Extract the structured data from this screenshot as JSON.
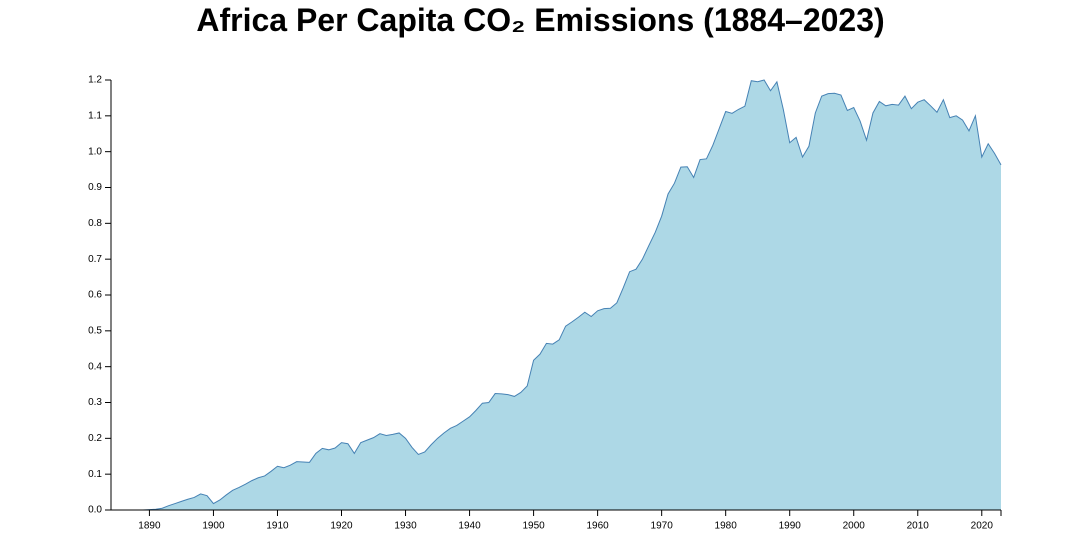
{
  "title": "Africa Per Capita CO₂ Emissions (1884–2023)",
  "colors": {
    "area_fill": "#add8e6",
    "area_stroke": "#4682b4",
    "axis": "#000000"
  },
  "chart_data": {
    "type": "area",
    "title": "Africa Per Capita CO₂ Emissions (1884–2023)",
    "xlabel": "",
    "ylabel": "",
    "xlim": [
      1884,
      2023
    ],
    "ylim": [
      0,
      1.2
    ],
    "grid": false,
    "x_ticks": [
      1890,
      1900,
      1910,
      1920,
      1930,
      1940,
      1950,
      1960,
      1970,
      1980,
      1990,
      2000,
      2010,
      2020
    ],
    "y_ticks": [
      "0.0",
      "0.1",
      "0.2",
      "0.3",
      "0.4",
      "0.5",
      "0.6",
      "0.7",
      "0.8",
      "0.9",
      "1.0",
      "1.1",
      "1.2"
    ],
    "series": [
      {
        "x": [
          1884,
          1885,
          1886,
          1887,
          1888,
          1889,
          1890,
          1891,
          1892,
          1893,
          1894,
          1895,
          1896,
          1897,
          1898,
          1899,
          1900,
          1901,
          1902,
          1903,
          1904,
          1905,
          1906,
          1907,
          1908,
          1909,
          1910,
          1911,
          1912,
          1913,
          1914,
          1915,
          1916,
          1917,
          1918,
          1919,
          1920,
          1921,
          1922,
          1923,
          1924,
          1925,
          1926,
          1927,
          1928,
          1929,
          1930,
          1931,
          1932,
          1933,
          1934,
          1935,
          1936,
          1937,
          1938,
          1939,
          1940,
          1941,
          1942,
          1943,
          1944,
          1945,
          1946,
          1947,
          1948,
          1949,
          1950,
          1951,
          1952,
          1953,
          1954,
          1955,
          1956,
          1957,
          1958,
          1959,
          1960,
          1961,
          1962,
          1963,
          1964,
          1965,
          1966,
          1967,
          1968,
          1969,
          1970,
          1971,
          1972,
          1973,
          1974,
          1975,
          1976,
          1977,
          1978,
          1979,
          1980,
          1981,
          1982,
          1983,
          1984,
          1985,
          1986,
          1987,
          1988,
          1989,
          1990,
          1991,
          1992,
          1993,
          1994,
          1995,
          1996,
          1997,
          1998,
          1999,
          2000,
          2001,
          2002,
          2003,
          2004,
          2005,
          2006,
          2007,
          2008,
          2009,
          2010,
          2011,
          2012,
          2013,
          2014,
          2015,
          2016,
          2017,
          2018,
          2019,
          2020,
          2021,
          2022,
          2023
        ],
        "values": [
          0.0,
          0.0,
          0.0,
          0.0,
          0.0,
          0.0,
          0.001,
          0.002,
          0.005,
          0.012,
          0.018,
          0.024,
          0.03,
          0.035,
          0.045,
          0.04,
          0.018,
          0.028,
          0.042,
          0.055,
          0.063,
          0.072,
          0.082,
          0.09,
          0.095,
          0.108,
          0.122,
          0.118,
          0.125,
          0.135,
          0.134,
          0.133,
          0.158,
          0.172,
          0.168,
          0.173,
          0.188,
          0.185,
          0.158,
          0.188,
          0.195,
          0.202,
          0.213,
          0.208,
          0.211,
          0.215,
          0.2,
          0.175,
          0.155,
          0.162,
          0.182,
          0.2,
          0.215,
          0.228,
          0.236,
          0.248,
          0.26,
          0.278,
          0.298,
          0.3,
          0.325,
          0.324,
          0.322,
          0.317,
          0.328,
          0.346,
          0.418,
          0.435,
          0.465,
          0.463,
          0.475,
          0.513,
          0.525,
          0.538,
          0.552,
          0.54,
          0.556,
          0.562,
          0.563,
          0.578,
          0.62,
          0.665,
          0.672,
          0.7,
          0.738,
          0.775,
          0.82,
          0.882,
          0.912,
          0.957,
          0.958,
          0.928,
          0.978,
          0.98,
          1.018,
          1.065,
          1.112,
          1.107,
          1.118,
          1.127,
          1.198,
          1.195,
          1.2,
          1.17,
          1.195,
          1.118,
          1.025,
          1.04,
          0.985,
          1.015,
          1.108,
          1.155,
          1.162,
          1.163,
          1.158,
          1.115,
          1.123,
          1.085,
          1.032,
          1.108,
          1.14,
          1.128,
          1.132,
          1.13,
          1.155,
          1.12,
          1.138,
          1.145,
          1.128,
          1.11,
          1.145,
          1.095,
          1.1,
          1.088,
          1.058,
          1.1,
          0.985,
          1.022,
          0.995,
          0.963
        ]
      }
    ]
  }
}
